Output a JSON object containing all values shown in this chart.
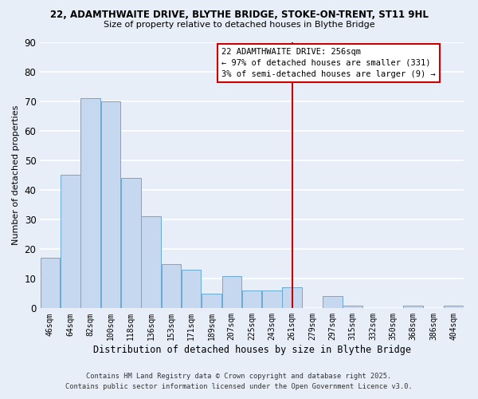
{
  "title_line1": "22, ADAMTHWAITE DRIVE, BLYTHE BRIDGE, STOKE-ON-TRENT, ST11 9HL",
  "title_line2": "Size of property relative to detached houses in Blythe Bridge",
  "xlabel": "Distribution of detached houses by size in Blythe Bridge",
  "ylabel": "Number of detached properties",
  "categories": [
    "46sqm",
    "64sqm",
    "82sqm",
    "100sqm",
    "118sqm",
    "136sqm",
    "153sqm",
    "171sqm",
    "189sqm",
    "207sqm",
    "225sqm",
    "243sqm",
    "261sqm",
    "279sqm",
    "297sqm",
    "315sqm",
    "332sqm",
    "350sqm",
    "368sqm",
    "386sqm",
    "404sqm"
  ],
  "values": [
    17,
    45,
    71,
    70,
    44,
    31,
    15,
    13,
    5,
    11,
    6,
    6,
    7,
    0,
    4,
    1,
    0,
    0,
    1,
    0,
    1
  ],
  "bar_color": "#c5d8f0",
  "bar_edge_color": "#6aaad4",
  "background_color": "#e8eef8",
  "grid_color": "#ffffff",
  "vline_x": 12,
  "vline_color": "#cc0000",
  "annotation_text": "22 ADAMTHWAITE DRIVE: 256sqm\n← 97% of detached houses are smaller (331)\n3% of semi-detached houses are larger (9) →",
  "annotation_box_color": "#ffffff",
  "annotation_box_edge_color": "#cc0000",
  "ylim": [
    0,
    90
  ],
  "yticks": [
    0,
    10,
    20,
    30,
    40,
    50,
    60,
    70,
    80,
    90
  ],
  "footnote1": "Contains HM Land Registry data © Crown copyright and database right 2025.",
  "footnote2": "Contains public sector information licensed under the Open Government Licence v3.0."
}
